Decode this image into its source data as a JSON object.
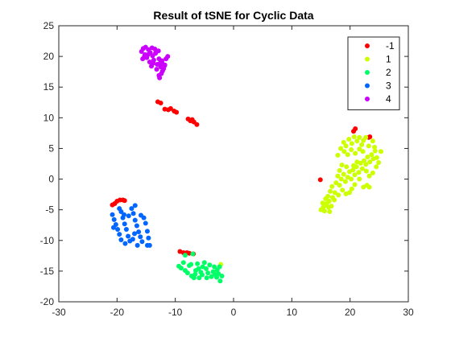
{
  "chart_data": {
    "type": "scatter",
    "title": "Result of tSNE for Cyclic Data",
    "xlabel": "",
    "ylabel": "",
    "xlim": [
      -30,
      30
    ],
    "ylim": [
      -20,
      25
    ],
    "xticks": [
      -30,
      -20,
      -10,
      0,
      10,
      20,
      30
    ],
    "yticks": [
      -20,
      -15,
      -10,
      -5,
      0,
      5,
      10,
      15,
      20,
      25
    ],
    "grid": false,
    "legend_position": "top-right",
    "series": [
      {
        "name": "-1",
        "color": "#ff0000",
        "points": [
          [
            -13,
            12.6
          ],
          [
            -12.5,
            12.4
          ],
          [
            -11.8,
            11.4
          ],
          [
            -11.2,
            11.3
          ],
          [
            -10.8,
            11.5
          ],
          [
            -10.2,
            11.1
          ],
          [
            -9.8,
            10.9
          ],
          [
            -7.8,
            9.8
          ],
          [
            -7.4,
            9.5
          ],
          [
            -7.1,
            9.7
          ],
          [
            -6.8,
            9.3
          ],
          [
            -6.3,
            8.9
          ],
          [
            -20.8,
            -4.2
          ],
          [
            -20.4,
            -4.0
          ],
          [
            -20.0,
            -3.6
          ],
          [
            -19.5,
            -3.4
          ],
          [
            -19.0,
            -3.4
          ],
          [
            -18.7,
            -3.5
          ],
          [
            -9.2,
            -11.8
          ],
          [
            -8.6,
            -12.0
          ],
          [
            -8.0,
            -12.0
          ],
          [
            -7.6,
            -12.1
          ],
          [
            -6.9,
            -12.2
          ],
          [
            14.9,
            -0.1
          ],
          [
            20.6,
            7.8
          ],
          [
            20.9,
            8.2
          ],
          [
            23.2,
            6.8
          ],
          [
            23.4,
            6.9
          ]
        ]
      },
      {
        "name": "1",
        "color": "#ccff00",
        "points": [
          [
            15.0,
            -5.0
          ],
          [
            15.4,
            -4.6
          ],
          [
            15.6,
            -5.2
          ],
          [
            15.3,
            -3.9
          ],
          [
            16.0,
            -4.0
          ],
          [
            16.3,
            -4.6
          ],
          [
            16.5,
            -5.3
          ],
          [
            16.8,
            -4.4
          ],
          [
            15.8,
            -3.2
          ],
          [
            16.2,
            -2.8
          ],
          [
            16.6,
            -2.0
          ],
          [
            17.0,
            -3.0
          ],
          [
            17.4,
            -2.2
          ],
          [
            16.9,
            -1.2
          ],
          [
            17.6,
            -0.6
          ],
          [
            17.9,
            0.5
          ],
          [
            18.2,
            -1.0
          ],
          [
            18.5,
            0.0
          ],
          [
            18.9,
            0.8
          ],
          [
            19.2,
            -0.4
          ],
          [
            19.6,
            0.3
          ],
          [
            19.9,
            1.2
          ],
          [
            20.2,
            0.0
          ],
          [
            20.5,
            1.5
          ],
          [
            20.8,
            0.7
          ],
          [
            21.1,
            2.0
          ],
          [
            21.5,
            1.1
          ],
          [
            21.8,
            2.6
          ],
          [
            22.1,
            1.7
          ],
          [
            22.4,
            3.0
          ],
          [
            22.7,
            2.4
          ],
          [
            23.0,
            3.6
          ],
          [
            23.4,
            2.8
          ],
          [
            23.7,
            4.0
          ],
          [
            24.0,
            3.3
          ],
          [
            24.3,
            4.6
          ],
          [
            24.6,
            3.5
          ],
          [
            24.9,
            2.7
          ],
          [
            25.3,
            4.5
          ],
          [
            24.5,
            2.0
          ],
          [
            23.9,
            1.0
          ],
          [
            23.3,
            0.5
          ],
          [
            22.9,
            -1.0
          ],
          [
            22.3,
            -1.3
          ],
          [
            23.3,
            -1.3
          ],
          [
            21.6,
            0.0
          ],
          [
            20.8,
            -0.9
          ],
          [
            20.3,
            -1.6
          ],
          [
            19.9,
            -2.2
          ],
          [
            19.3,
            -2.4
          ],
          [
            18.7,
            -1.8
          ],
          [
            18.0,
            -2.6
          ],
          [
            17.3,
            -3.4
          ],
          [
            16.4,
            -3.6
          ],
          [
            15.6,
            -4.3
          ],
          [
            17.9,
            3.9
          ],
          [
            18.4,
            5.0
          ],
          [
            18.9,
            6.0
          ],
          [
            19.3,
            5.4
          ],
          [
            19.8,
            6.5
          ],
          [
            20.3,
            5.8
          ],
          [
            20.7,
            6.9
          ],
          [
            21.2,
            6.2
          ],
          [
            21.6,
            6.8
          ],
          [
            22.0,
            5.6
          ],
          [
            22.3,
            6.3
          ],
          [
            22.7,
            6.8
          ],
          [
            19.0,
            4.5
          ],
          [
            19.6,
            4.0
          ],
          [
            20.2,
            4.8
          ],
          [
            20.9,
            4.2
          ],
          [
            21.6,
            4.9
          ],
          [
            22.2,
            4.5
          ],
          [
            23.2,
            5.4
          ],
          [
            24.2,
            5.2
          ],
          [
            23.9,
            6.2
          ],
          [
            21.2,
            2.8
          ],
          [
            20.6,
            2.2
          ],
          [
            22.8,
            1.3
          ],
          [
            18.6,
            2.3
          ],
          [
            19.4,
            2.0
          ],
          [
            18.2,
            1.4
          ],
          [
            -2.2,
            -13.9
          ]
        ]
      },
      {
        "name": "2",
        "color": "#00ff66",
        "points": [
          [
            -9.4,
            -14.2
          ],
          [
            -9.0,
            -14.5
          ],
          [
            -8.6,
            -13.6
          ],
          [
            -8.3,
            -14.9
          ],
          [
            -7.9,
            -15.3
          ],
          [
            -7.6,
            -14.1
          ],
          [
            -7.2,
            -15.8
          ],
          [
            -6.8,
            -16.1
          ],
          [
            -6.5,
            -14.9
          ],
          [
            -6.2,
            -13.8
          ],
          [
            -5.9,
            -16.1
          ],
          [
            -5.6,
            -15.2
          ],
          [
            -5.3,
            -14.3
          ],
          [
            -5.0,
            -13.6
          ],
          [
            -4.7,
            -14.6
          ],
          [
            -4.4,
            -15.3
          ],
          [
            -4.1,
            -14.0
          ],
          [
            -3.8,
            -15.9
          ],
          [
            -3.5,
            -15.1
          ],
          [
            -3.2,
            -15.5
          ],
          [
            -2.9,
            -16.0
          ],
          [
            -2.6,
            -15.4
          ],
          [
            -2.3,
            -16.6
          ],
          [
            -2.0,
            -15.8
          ],
          [
            -2.4,
            -14.3
          ],
          [
            -2.8,
            -14.8
          ],
          [
            -6.0,
            -14.6
          ],
          [
            -5.4,
            -15.6
          ],
          [
            -4.6,
            -16.1
          ],
          [
            -7.0,
            -12.2
          ],
          [
            -8.3,
            -12.4
          ],
          [
            -7.3,
            -13.9
          ],
          [
            -6.6,
            -15.5
          ],
          [
            -3.3,
            -14.3
          ]
        ]
      },
      {
        "name": "3",
        "color": "#0066ff",
        "points": [
          [
            -20.8,
            -5.8
          ],
          [
            -20.5,
            -6.6
          ],
          [
            -20.2,
            -7.4
          ],
          [
            -19.9,
            -8.2
          ],
          [
            -19.6,
            -9.0
          ],
          [
            -19.3,
            -5.3
          ],
          [
            -19.0,
            -6.3
          ],
          [
            -18.7,
            -7.3
          ],
          [
            -18.4,
            -8.2
          ],
          [
            -18.1,
            -9.3
          ],
          [
            -17.8,
            -10.1
          ],
          [
            -17.5,
            -4.8
          ],
          [
            -17.2,
            -5.6
          ],
          [
            -16.9,
            -6.7
          ],
          [
            -16.6,
            -7.6
          ],
          [
            -16.3,
            -8.6
          ],
          [
            -16.0,
            -9.4
          ],
          [
            -15.7,
            -10.2
          ],
          [
            -15.4,
            -6.3
          ],
          [
            -15.1,
            -7.2
          ],
          [
            -14.8,
            -8.5
          ],
          [
            -14.6,
            -9.6
          ],
          [
            -18.6,
            -10.5
          ],
          [
            -17.3,
            -9.8
          ],
          [
            -15.9,
            -5.9
          ],
          [
            -16.9,
            -4.3
          ],
          [
            -19.6,
            -4.8
          ],
          [
            -20.6,
            -7.9
          ],
          [
            -18.0,
            -6.0
          ],
          [
            -17.0,
            -8.9
          ],
          [
            -16.5,
            -10.8
          ],
          [
            -14.8,
            -10.8
          ],
          [
            -14.4,
            -10.8
          ],
          [
            -19.3,
            -9.9
          ],
          [
            -18.8,
            -5.8
          ]
        ]
      },
      {
        "name": "4",
        "color": "#cc00ff",
        "points": [
          [
            -15.8,
            20.8
          ],
          [
            -15.5,
            21.3
          ],
          [
            -15.2,
            20.3
          ],
          [
            -14.9,
            19.8
          ],
          [
            -14.6,
            21.1
          ],
          [
            -14.3,
            20.6
          ],
          [
            -14.0,
            21.4
          ],
          [
            -13.7,
            19.4
          ],
          [
            -13.4,
            20.5
          ],
          [
            -13.1,
            18.7
          ],
          [
            -12.8,
            19.6
          ],
          [
            -12.5,
            18.3
          ],
          [
            -12.3,
            19.3
          ],
          [
            -12.0,
            18.0
          ],
          [
            -11.8,
            18.6
          ],
          [
            -11.6,
            19.6
          ],
          [
            -11.3,
            20.0
          ],
          [
            -15.6,
            19.6
          ],
          [
            -15.1,
            21.5
          ],
          [
            -14.4,
            19.1
          ],
          [
            -13.8,
            18.9
          ],
          [
            -13.2,
            17.9
          ],
          [
            -12.7,
            16.5
          ],
          [
            -13.5,
            21.2
          ],
          [
            -12.9,
            20.9
          ],
          [
            -12.6,
            18.9
          ],
          [
            -12.2,
            17.6
          ],
          [
            -11.9,
            18.4
          ],
          [
            -14.7,
            20.3
          ],
          [
            -13.9,
            20.1
          ],
          [
            -12.3,
            19.0
          ],
          [
            -15.3,
            20.0
          ],
          [
            -14.1,
            18.4
          ],
          [
            -12.4,
            17.2
          ],
          [
            -12.8,
            16.9
          ]
        ]
      }
    ]
  }
}
